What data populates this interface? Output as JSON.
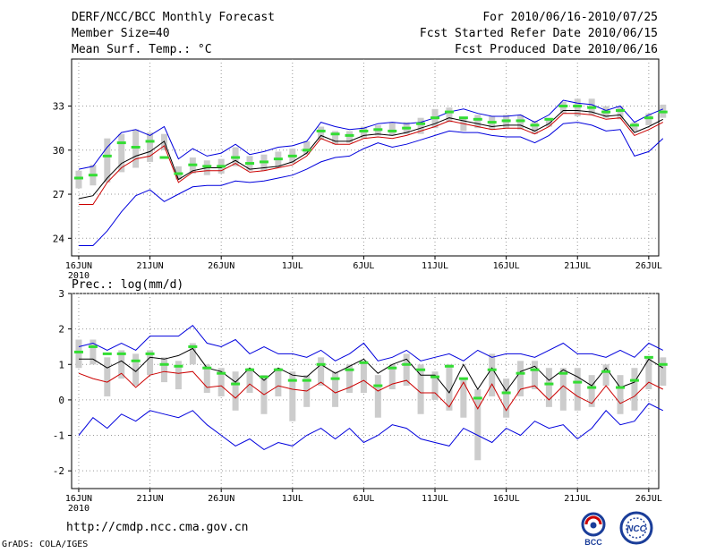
{
  "header": {
    "title": "DERF/NCC/BCC Monthly Forecast",
    "member_size": "Member Size=40",
    "variable": "Mean Surf. Temp.: °C",
    "period": "For 2010/06/16-2010/07/25",
    "started": "Fcst Started Refer Date 2010/06/15",
    "produced": "Fcst Produced Date 2010/06/16"
  },
  "footer": {
    "url": "http://cmdp.ncc.cma.gov.cn",
    "grads": "GrADS: COLA/IGES",
    "logo_bcc": "BCC",
    "logo_ncc": "NCC"
  },
  "colors": {
    "max": "#0000dd",
    "min": "#0000dd",
    "median": "#000000",
    "mean": "#cc0000",
    "ensemble": "#33dd33",
    "spread": "#cccccc"
  },
  "chart_data": [
    {
      "type": "line",
      "title": "Mean Surf. Temp.: °C",
      "ylim": [
        22.8,
        36.2
      ],
      "yticks": [
        24,
        27,
        30,
        33
      ],
      "xticks": [
        {
          "day": 0,
          "label": "16JUN",
          "sub": "2010"
        },
        {
          "day": 5,
          "label": "21JUN"
        },
        {
          "day": 10,
          "label": "26JUN"
        },
        {
          "day": 15,
          "label": "1JUL"
        },
        {
          "day": 20,
          "label": "6JUL"
        },
        {
          "day": 25,
          "label": "11JUL"
        },
        {
          "day": 30,
          "label": "16JUL"
        },
        {
          "day": 35,
          "label": "21JUL"
        },
        {
          "day": 40,
          "label": "26JUL"
        }
      ],
      "series": [
        {
          "name": "max",
          "values": [
            28.7,
            28.9,
            30.2,
            31.2,
            31.4,
            31.0,
            31.6,
            29.4,
            30.1,
            29.6,
            29.8,
            30.4,
            29.7,
            29.9,
            30.2,
            30.3,
            30.6,
            31.9,
            31.6,
            31.4,
            31.5,
            31.8,
            31.9,
            31.8,
            31.9,
            32.2,
            32.6,
            32.8,
            32.5,
            32.3,
            32.3,
            32.4,
            31.9,
            32.4,
            33.4,
            33.2,
            33.1,
            32.7,
            33.0,
            31.9,
            32.4,
            32.8
          ]
        },
        {
          "name": "median",
          "values": [
            26.7,
            26.9,
            28.1,
            29.1,
            29.6,
            29.9,
            30.6,
            28.0,
            28.6,
            28.8,
            28.8,
            29.3,
            28.7,
            28.8,
            28.9,
            29.2,
            29.8,
            31.0,
            30.6,
            30.6,
            31.0,
            31.1,
            31.0,
            31.2,
            31.5,
            31.8,
            32.2,
            32.0,
            31.8,
            31.6,
            31.7,
            31.7,
            31.3,
            31.8,
            32.7,
            32.7,
            32.6,
            32.3,
            32.4,
            31.2,
            31.6,
            32.1
          ]
        },
        {
          "name": "mean",
          "values": [
            26.3,
            26.3,
            27.8,
            28.8,
            29.4,
            29.6,
            30.3,
            27.8,
            28.5,
            28.6,
            28.6,
            29.1,
            28.5,
            28.6,
            28.8,
            29.0,
            29.6,
            30.8,
            30.4,
            30.4,
            30.8,
            30.9,
            30.8,
            31.0,
            31.3,
            31.6,
            32.0,
            31.8,
            31.6,
            31.4,
            31.5,
            31.5,
            31.1,
            31.6,
            32.5,
            32.5,
            32.4,
            32.1,
            32.2,
            31.0,
            31.4,
            31.9
          ]
        },
        {
          "name": "min",
          "values": [
            23.5,
            23.5,
            24.5,
            25.8,
            26.9,
            27.3,
            26.5,
            27.0,
            27.5,
            27.6,
            27.6,
            27.9,
            27.8,
            27.9,
            28.1,
            28.3,
            28.7,
            29.2,
            29.5,
            29.6,
            30.1,
            30.5,
            30.2,
            30.4,
            30.7,
            31.0,
            31.3,
            31.2,
            31.2,
            31.0,
            30.9,
            30.9,
            30.5,
            31.0,
            31.8,
            31.9,
            31.7,
            31.3,
            31.4,
            29.6,
            29.9,
            30.8
          ]
        },
        {
          "name": "ensemble",
          "values": [
            28.1,
            28.3,
            29.6,
            30.5,
            30.2,
            30.6,
            29.5,
            28.4,
            29.0,
            28.9,
            28.9,
            29.5,
            29.1,
            29.2,
            29.4,
            29.6,
            30.0,
            31.3,
            31.1,
            31.0,
            31.3,
            31.4,
            31.3,
            31.5,
            31.8,
            32.2,
            32.6,
            32.2,
            32.1,
            31.9,
            32.0,
            32.0,
            31.7,
            32.1,
            33.0,
            33.0,
            32.9,
            32.6,
            32.7,
            31.7,
            32.2,
            32.6
          ]
        }
      ],
      "spread_ranges": [
        [
          27.4,
          28.6
        ],
        [
          27.6,
          29.0
        ],
        [
          27.8,
          30.8
        ],
        [
          28.5,
          31.1
        ],
        [
          28.8,
          31.4
        ],
        [
          29.2,
          31.2
        ],
        [
          30.0,
          31.1
        ],
        [
          28.0,
          28.9
        ],
        [
          28.4,
          29.5
        ],
        [
          28.3,
          29.3
        ],
        [
          28.4,
          29.4
        ],
        [
          28.9,
          30.2
        ],
        [
          28.6,
          29.6
        ],
        [
          28.6,
          29.7
        ],
        [
          28.8,
          29.9
        ],
        [
          29.1,
          30.1
        ],
        [
          29.7,
          30.6
        ],
        [
          30.7,
          31.6
        ],
        [
          30.4,
          31.3
        ],
        [
          30.5,
          31.3
        ],
        [
          30.8,
          31.6
        ],
        [
          31.0,
          31.7
        ],
        [
          31.0,
          31.9
        ],
        [
          31.1,
          31.9
        ],
        [
          31.1,
          32.2
        ],
        [
          31.5,
          32.8
        ],
        [
          31.9,
          32.9
        ],
        [
          31.3,
          32.2
        ],
        [
          31.5,
          32.4
        ],
        [
          31.4,
          32.3
        ],
        [
          31.5,
          32.4
        ],
        [
          31.4,
          32.4
        ],
        [
          31.1,
          32.0
        ],
        [
          31.6,
          32.2
        ],
        [
          32.5,
          33.3
        ],
        [
          32.3,
          33.5
        ],
        [
          32.4,
          33.5
        ],
        [
          32.2,
          33.0
        ],
        [
          32.1,
          33.0
        ],
        [
          31.3,
          31.9
        ],
        [
          31.7,
          32.5
        ],
        [
          32.2,
          33.1
        ]
      ]
    },
    {
      "type": "line",
      "title": "Prec.: log(mm/d)",
      "ylim": [
        -2.5,
        3.0
      ],
      "yticks": [
        -2,
        -1,
        0,
        1,
        2,
        3
      ],
      "xticks": [
        {
          "day": 0,
          "label": "16JUN",
          "sub": "2010"
        },
        {
          "day": 5,
          "label": "21JUN"
        },
        {
          "day": 10,
          "label": "26JUN"
        },
        {
          "day": 15,
          "label": "1JUL"
        },
        {
          "day": 20,
          "label": "6JUL"
        },
        {
          "day": 25,
          "label": "11JUL"
        },
        {
          "day": 30,
          "label": "16JUL"
        },
        {
          "day": 35,
          "label": "21JUL"
        },
        {
          "day": 40,
          "label": "26JUL"
        }
      ],
      "series": [
        {
          "name": "max",
          "values": [
            1.5,
            1.6,
            1.4,
            1.6,
            1.4,
            1.8,
            1.8,
            1.8,
            2.1,
            1.6,
            1.5,
            1.7,
            1.3,
            1.5,
            1.3,
            1.3,
            1.2,
            1.4,
            1.1,
            1.3,
            1.6,
            1.1,
            1.2,
            1.4,
            1.1,
            1.2,
            1.3,
            1.1,
            1.4,
            1.2,
            1.3,
            1.3,
            1.2,
            1.4,
            1.6,
            1.3,
            1.3,
            1.2,
            1.4,
            1.2,
            1.6,
            1.4
          ]
        },
        {
          "name": "median",
          "values": [
            1.15,
            1.15,
            0.9,
            1.1,
            0.8,
            1.2,
            1.15,
            1.25,
            1.45,
            0.9,
            0.8,
            0.5,
            0.9,
            0.55,
            0.9,
            0.7,
            0.65,
            1.0,
            0.75,
            0.95,
            1.15,
            0.75,
            1.0,
            1.15,
            0.7,
            0.7,
            0.2,
            1.0,
            0.3,
            0.9,
            0.25,
            0.8,
            0.95,
            0.55,
            0.85,
            0.65,
            0.4,
            0.9,
            0.35,
            0.5,
            1.15,
            0.9
          ]
        },
        {
          "name": "mean",
          "values": [
            0.75,
            0.6,
            0.5,
            0.75,
            0.35,
            0.7,
            0.8,
            0.75,
            0.8,
            0.35,
            0.4,
            0.05,
            0.45,
            0.15,
            0.4,
            0.3,
            0.25,
            0.5,
            0.2,
            0.35,
            0.55,
            0.25,
            0.45,
            0.55,
            0.2,
            0.2,
            -0.2,
            0.5,
            -0.25,
            0.45,
            -0.3,
            0.3,
            0.4,
            0.0,
            0.4,
            0.1,
            -0.1,
            0.4,
            -0.1,
            0.1,
            0.5,
            0.3
          ]
        },
        {
          "name": "min",
          "values": [
            -1.0,
            -0.5,
            -0.8,
            -0.4,
            -0.6,
            -0.3,
            -0.4,
            -0.5,
            -0.3,
            -0.7,
            -1.0,
            -1.3,
            -1.1,
            -1.4,
            -1.2,
            -1.3,
            -1.0,
            -0.8,
            -1.1,
            -0.8,
            -1.2,
            -1.0,
            -0.7,
            -0.8,
            -1.1,
            -1.2,
            -1.3,
            -0.8,
            -1.0,
            -1.2,
            -0.8,
            -1.0,
            -0.6,
            -0.8,
            -0.7,
            -1.1,
            -0.8,
            -0.3,
            -0.7,
            -0.6,
            -0.1,
            -0.3
          ]
        },
        {
          "name": "ensemble",
          "values": [
            1.35,
            1.5,
            1.3,
            1.3,
            1.1,
            1.3,
            1.0,
            0.95,
            1.5,
            0.9,
            0.75,
            0.45,
            0.85,
            0.65,
            0.85,
            0.55,
            0.55,
            1.0,
            0.6,
            0.85,
            1.05,
            0.4,
            0.9,
            1.0,
            0.85,
            0.65,
            0.95,
            0.6,
            0.05,
            0.85,
            0.2,
            0.75,
            0.85,
            0.45,
            0.75,
            0.5,
            0.35,
            0.8,
            0.35,
            0.55,
            1.2,
            1.0
          ]
        }
      ],
      "spread_ranges": [
        [
          0.9,
          1.7
        ],
        [
          1.0,
          1.7
        ],
        [
          0.1,
          1.2
        ],
        [
          0.6,
          1.4
        ],
        [
          0.4,
          1.3
        ],
        [
          0.7,
          1.4
        ],
        [
          0.5,
          1.2
        ],
        [
          0.3,
          1.1
        ],
        [
          1.0,
          1.6
        ],
        [
          0.2,
          1.0
        ],
        [
          0.1,
          0.9
        ],
        [
          -0.3,
          0.8
        ],
        [
          0.2,
          0.9
        ],
        [
          -0.4,
          0.7
        ],
        [
          0.1,
          0.9
        ],
        [
          -0.6,
          0.8
        ],
        [
          -0.2,
          0.7
        ],
        [
          0.4,
          1.2
        ],
        [
          -0.2,
          0.8
        ],
        [
          0.2,
          1.0
        ],
        [
          0.2,
          1.1
        ],
        [
          -0.5,
          0.7
        ],
        [
          0.3,
          1.0
        ],
        [
          0.4,
          1.3
        ],
        [
          -0.4,
          1.0
        ],
        [
          0.0,
          0.8
        ],
        [
          -0.3,
          1.0
        ],
        [
          -0.5,
          0.6
        ],
        [
          -1.7,
          0.3
        ],
        [
          0.1,
          1.3
        ],
        [
          -0.5,
          0.6
        ],
        [
          0.1,
          1.1
        ],
        [
          0.3,
          1.1
        ],
        [
          -0.2,
          0.9
        ],
        [
          -0.3,
          0.9
        ],
        [
          -0.3,
          0.9
        ],
        [
          -0.2,
          0.7
        ],
        [
          0.4,
          1.0
        ],
        [
          -0.4,
          0.7
        ],
        [
          -0.3,
          0.9
        ],
        [
          0.3,
          1.2
        ],
        [
          0.4,
          1.2
        ]
      ]
    }
  ]
}
